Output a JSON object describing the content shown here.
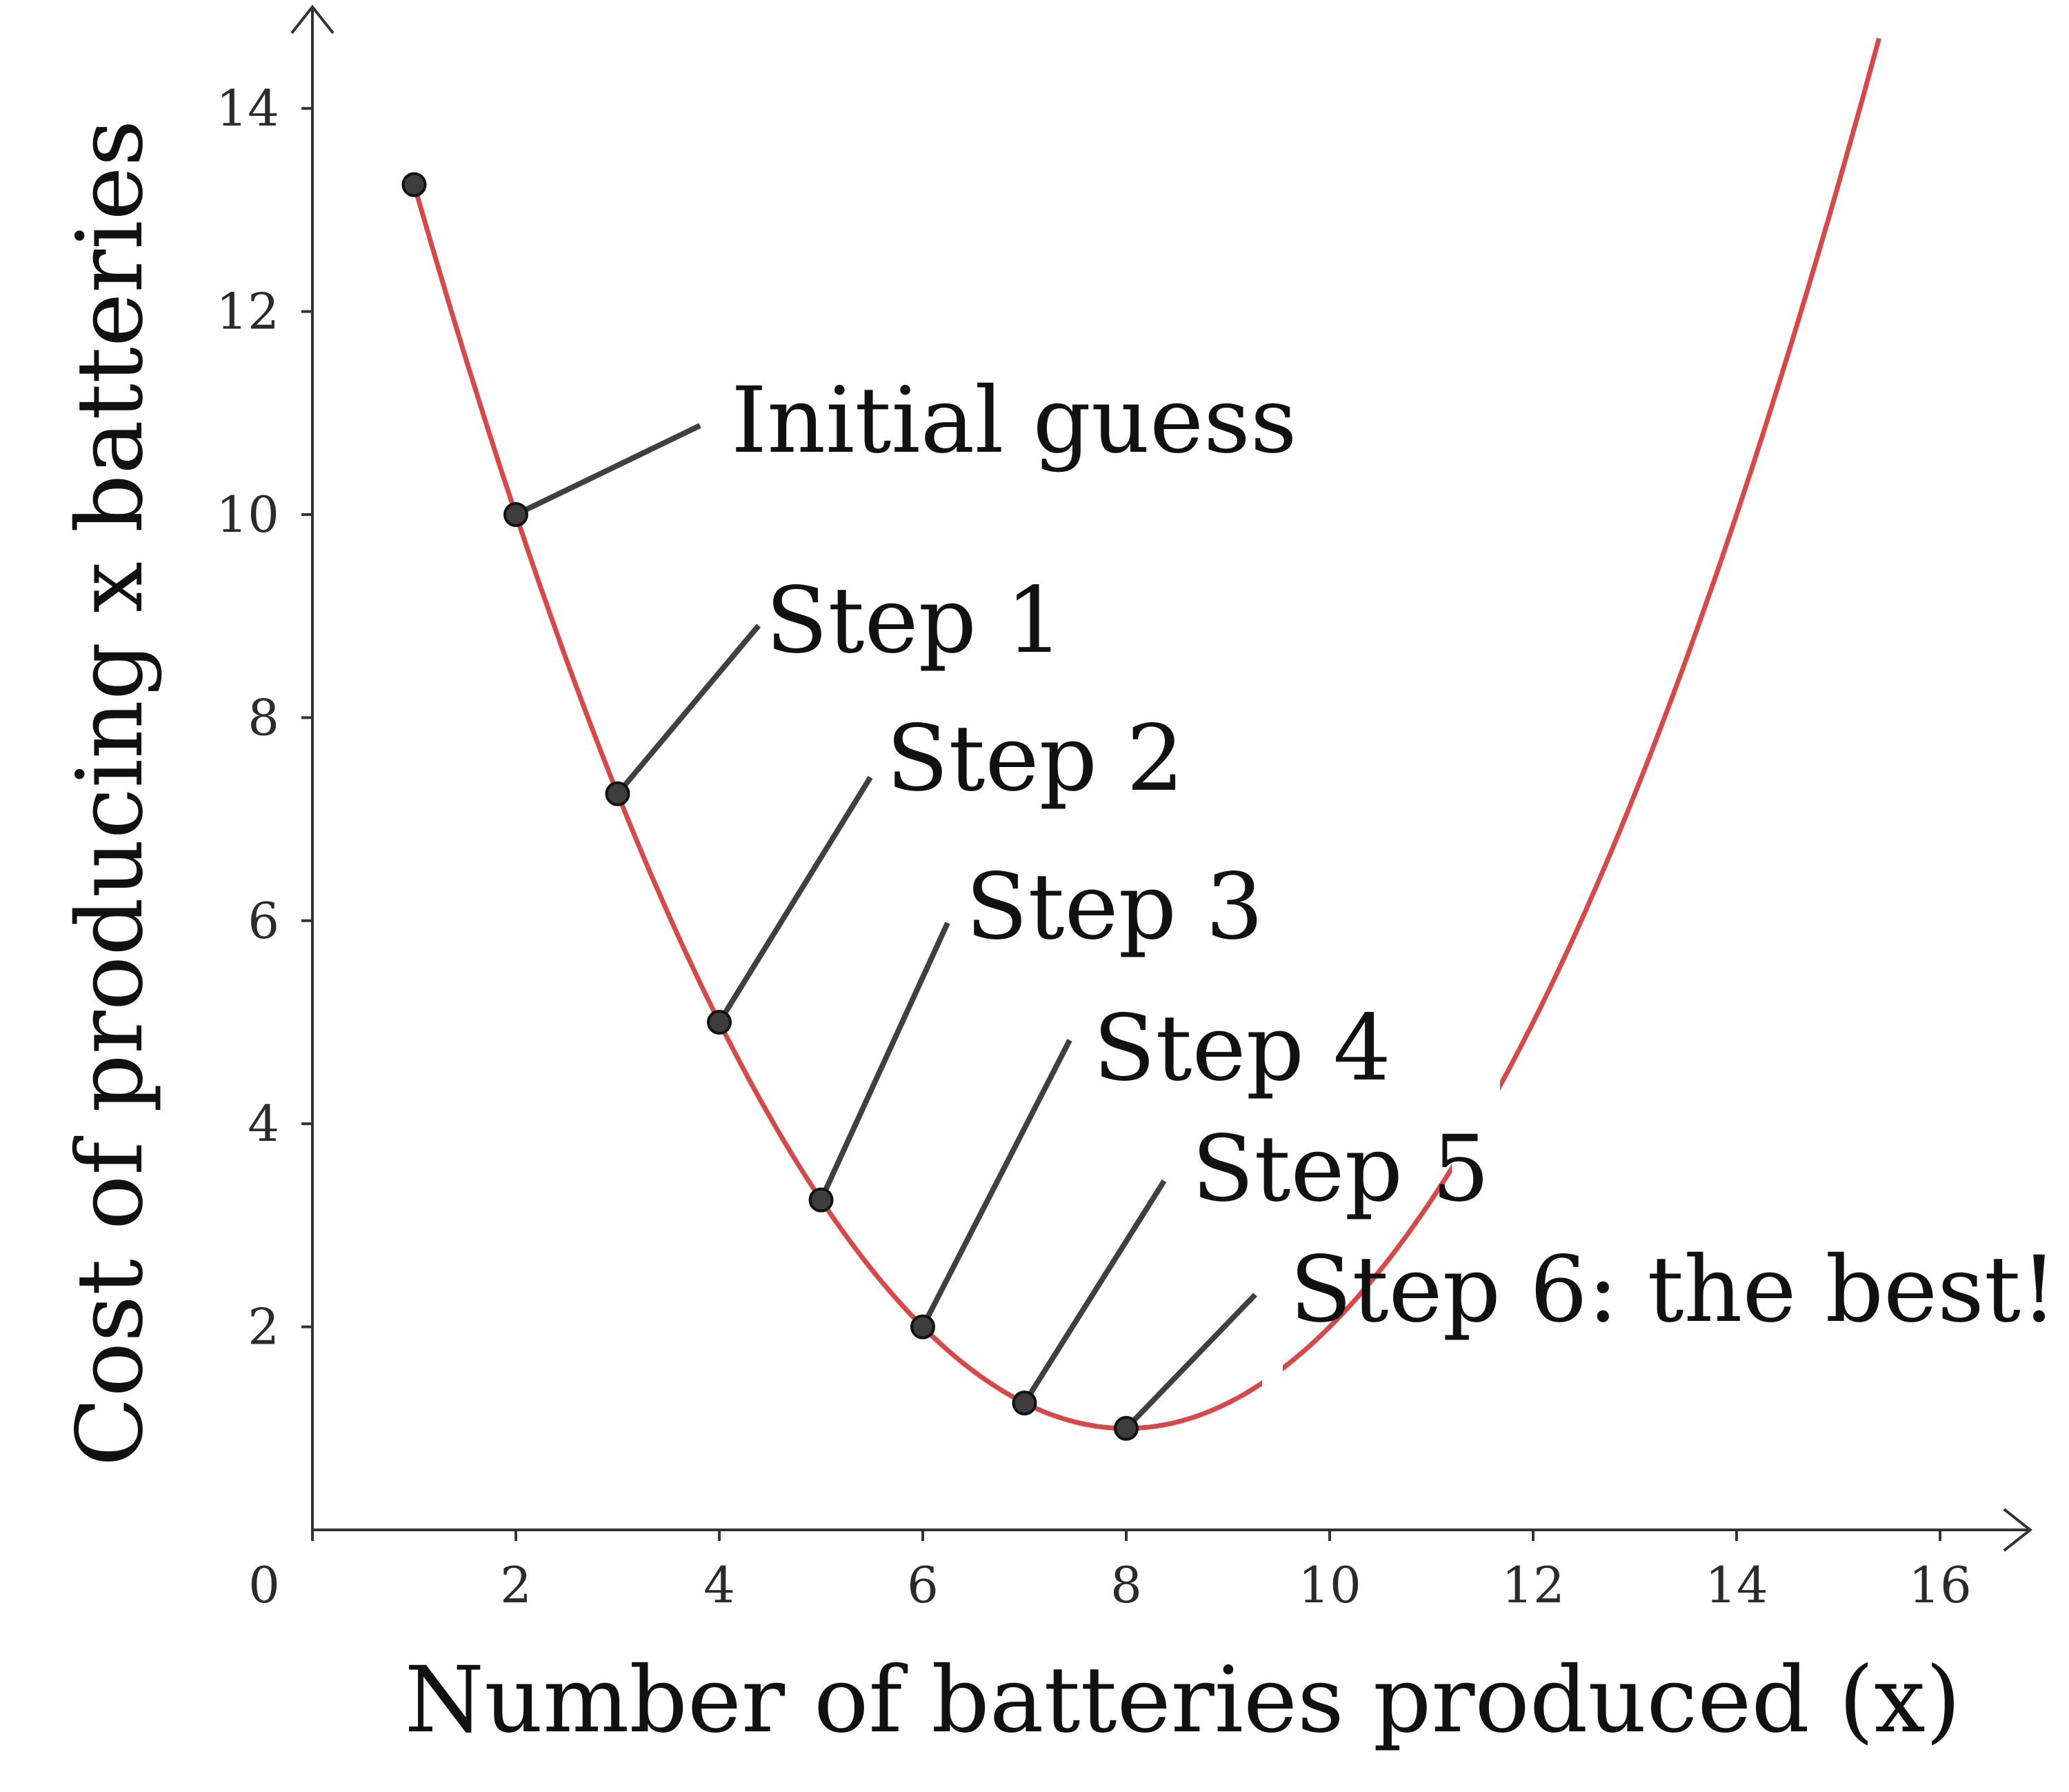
{
  "chart_data": {
    "type": "line",
    "xlabel": "Number of batteries produced (x)",
    "ylabel": "Cost of producing x batteries",
    "xlim": [
      0,
      16.9
    ],
    "ylim": [
      0,
      15
    ],
    "x_ticks": [
      "0",
      "2",
      "4",
      "6",
      "8",
      "10",
      "12",
      "14",
      "16"
    ],
    "y_ticks": [
      "2",
      "4",
      "6",
      "8",
      "10",
      "12",
      "14"
    ],
    "grid": false,
    "curve": {
      "formula": "y = (x - 8)^2 / 4 + 1",
      "x_min": 1,
      "x_max": 15.4,
      "color": "#d94848"
    },
    "points": [
      {
        "x": 1,
        "y": 13.25
      },
      {
        "x": 2,
        "y": 10
      },
      {
        "x": 3,
        "y": 7.25
      },
      {
        "x": 4,
        "y": 5
      },
      {
        "x": 5,
        "y": 3.25
      },
      {
        "x": 6,
        "y": 2
      },
      {
        "x": 7,
        "y": 1.25
      },
      {
        "x": 8,
        "y": 1
      }
    ],
    "annotations": [
      {
        "text": "Initial guess",
        "x": 2,
        "y": 10
      },
      {
        "text": "Step 1",
        "x": 3,
        "y": 7.25
      },
      {
        "text": "Step 2",
        "x": 4,
        "y": 5
      },
      {
        "text": "Step 3",
        "x": 5,
        "y": 3.25
      },
      {
        "text": "Step 4",
        "x": 6,
        "y": 2
      },
      {
        "text": "Step 5",
        "x": 7,
        "y": 1.25
      },
      {
        "text": "Step 6: the best!",
        "x": 8,
        "y": 1
      }
    ],
    "colors": {
      "curve": "#d94848",
      "points": "#3d3d3d",
      "arrows": "#404040",
      "axes": "#333333"
    }
  }
}
